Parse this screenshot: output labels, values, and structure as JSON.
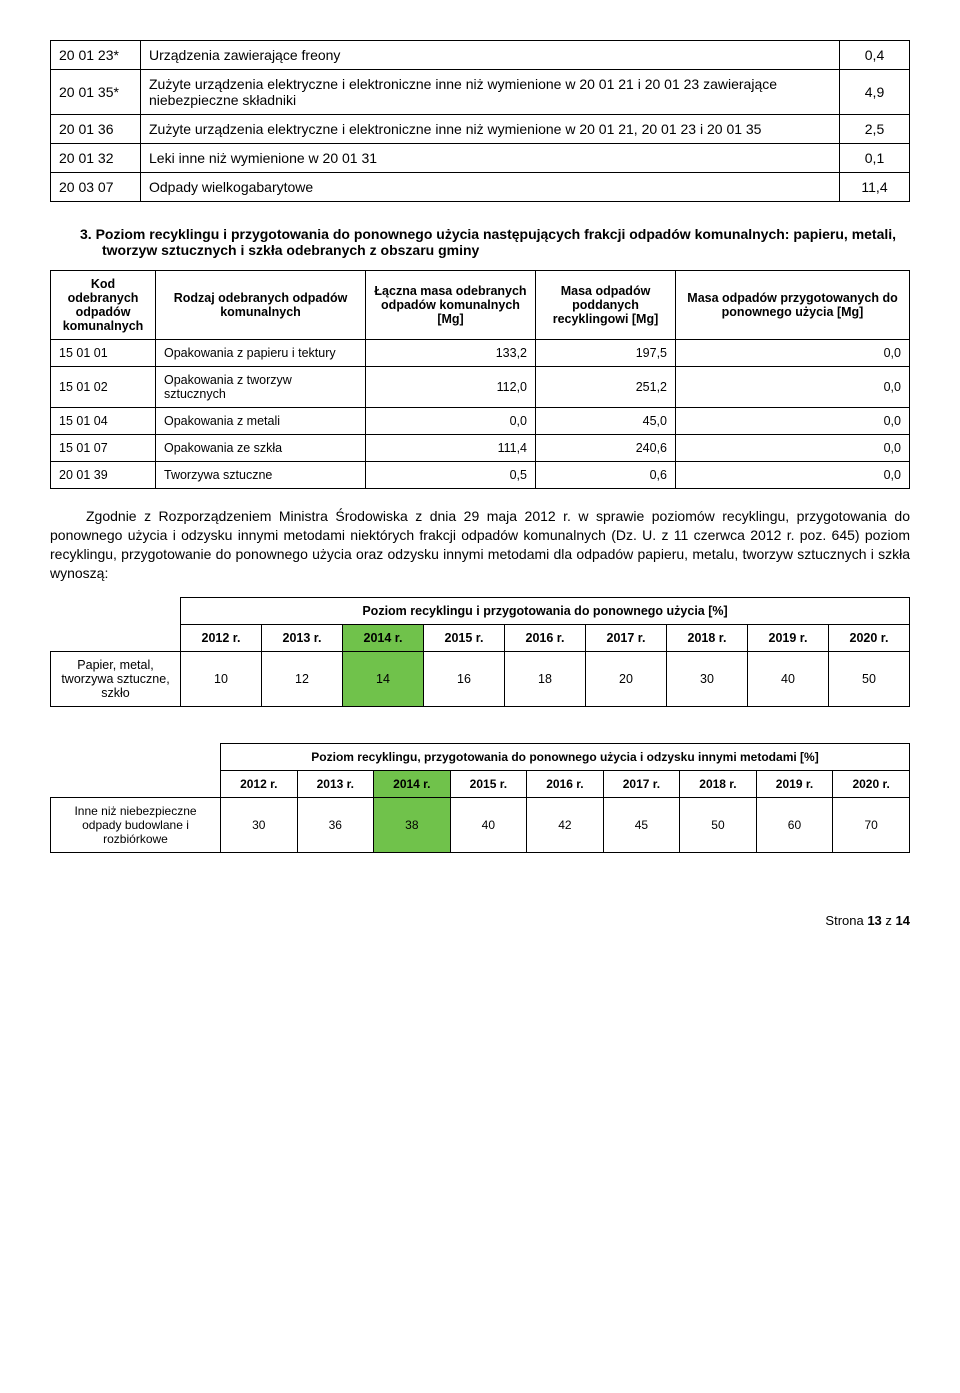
{
  "table1": {
    "rows": [
      {
        "code": "20 01 23*",
        "desc": "Urządzenia zawierające freony",
        "val": "0,4"
      },
      {
        "code": "20 01 35*",
        "desc": "Zużyte urządzenia elektryczne i elektroniczne inne niż wymienione w 20 01 21 i 20 01 23 zawierające niebezpieczne składniki",
        "val": "4,9"
      },
      {
        "code": "20 01 36",
        "desc": "Zużyte urządzenia elektryczne i elektroniczne inne niż wymienione w 20 01 21, 20 01 23 i 20 01 35",
        "val": "2,5"
      },
      {
        "code": "20 01 32",
        "desc": "Leki inne niż wymienione w 20 01 31",
        "val": "0,1"
      },
      {
        "code": "20 03 07",
        "desc": "Odpady wielkogabarytowe",
        "val": "11,4"
      }
    ]
  },
  "section3": {
    "num": "3.",
    "text": "Poziom recyklingu i przygotowania do ponownego użycia następujących frakcji odpadów komunalnych: papieru, metali, tworzyw sztucznych i szkła odebranych z obszaru gminy"
  },
  "table2": {
    "headers": {
      "h1": "Kod odebranych odpadów komunalnych",
      "h2": "Rodzaj odebranych odpadów komunalnych",
      "h3": "Łączna masa odebranych odpadów komunalnych [Mg]",
      "h4": "Masa odpadów poddanych recyklingowi [Mg]",
      "h5": "Masa odpadów przygotowanych do ponownego użycia [Mg]"
    },
    "rows": [
      {
        "c1": "15 01 01",
        "c2": "Opakowania z papieru i tektury",
        "c3": "133,2",
        "c4": "197,5",
        "c5": "0,0"
      },
      {
        "c1": "15 01 02",
        "c2": "Opakowania z tworzyw sztucznych",
        "c3": "112,0",
        "c4": "251,2",
        "c5": "0,0"
      },
      {
        "c1": "15 01 04",
        "c2": "Opakowania z metali",
        "c3": "0,0",
        "c4": "45,0",
        "c5": "0,0"
      },
      {
        "c1": "15 01 07",
        "c2": "Opakowania ze szkła",
        "c3": "111,4",
        "c4": "240,6",
        "c5": "0,0"
      },
      {
        "c1": "20 01 39",
        "c2": "Tworzywa sztuczne",
        "c3": "0,5",
        "c4": "0,6",
        "c5": "0,0"
      }
    ]
  },
  "paragraph": "Zgodnie z Rozporządzeniem Ministra Środowiska z dnia 29 maja 2012 r. w sprawie poziomów recyklingu, przygotowania do ponownego użycia i odzysku innymi metodami niektórych frakcji odpadów komunalnych (Dz. U. z 11 czerwca 2012 r. poz. 645) poziom recyklingu, przygotowanie do ponownego użycia oraz odzysku innymi metodami dla odpadów papieru, metalu, tworzyw sztucznych i szkła wynoszą:",
  "table3": {
    "caption": "Poziom recyklingu i przygotowania do ponownego użycia [%]",
    "years": [
      "2012 r.",
      "2013 r.",
      "2014 r.",
      "2015 r.",
      "2016 r.",
      "2017 r.",
      "2018 r.",
      "2019 r.",
      "2020 r."
    ],
    "row_label": "Papier, metal, tworzywa sztuczne, szkło",
    "values": [
      "10",
      "12",
      "14",
      "16",
      "18",
      "20",
      "30",
      "40",
      "50"
    ],
    "highlight_index": 2
  },
  "table4": {
    "caption": "Poziom recyklingu, przygotowania do ponownego użycia i odzysku innymi metodami [%]",
    "years": [
      "2012 r.",
      "2013 r.",
      "2014 r.",
      "2015 r.",
      "2016 r.",
      "2017 r.",
      "2018 r.",
      "2019 r.",
      "2020 r."
    ],
    "row_label": "Inne niż niebezpieczne odpady budowlane i rozbiórkowe",
    "values": [
      "30",
      "36",
      "38",
      "40",
      "42",
      "45",
      "50",
      "60",
      "70"
    ],
    "highlight_index": 2
  },
  "footer": {
    "prefix": "Strona ",
    "cur": "13",
    "mid": " z ",
    "total": "14"
  }
}
